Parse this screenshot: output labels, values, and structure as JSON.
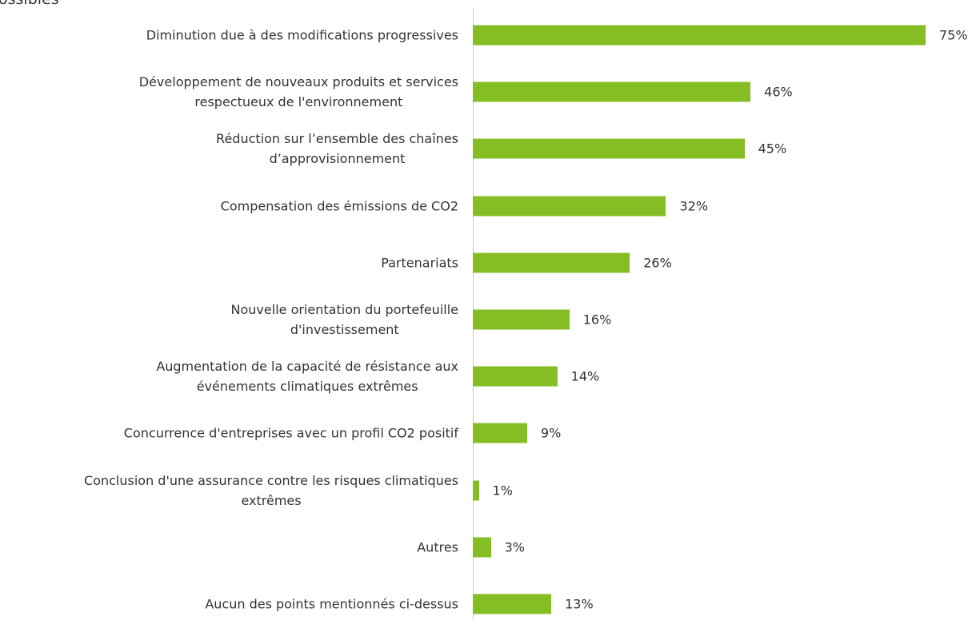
{
  "chart_data": {
    "type": "bar",
    "orientation": "horizontal",
    "title": "ossibles",
    "categories": [
      "Diminution due à des modifications progressives",
      "Développement de nouveaux produits et services\nrespectueux de l'environnement",
      "Réduction sur l’ensemble des chaînes\nd’approvisionnement",
      "Compensation des émissions de CO2",
      "Partenariats",
      "Nouvelle orientation du portefeuille\nd'investissement",
      "Augmentation de la capacité de résistance aux\névénements climatiques extrêmes",
      "Concurrence d'entreprises avec un profil CO2 positif",
      "Conclusion d'une assurance contre les risques climatiques\nextrêmes",
      "Autres",
      "Aucun des points mentionnés ci-dessus"
    ],
    "values": [
      75,
      46,
      45,
      32,
      26,
      16,
      14,
      9,
      1,
      3,
      13
    ],
    "value_labels": [
      "75%",
      "46%",
      "45%",
      "32%",
      "26%",
      "16%",
      "14%",
      "9%",
      "1%",
      "3%",
      "13%"
    ],
    "color": "#84bd24",
    "xlim": [
      0,
      75
    ]
  }
}
